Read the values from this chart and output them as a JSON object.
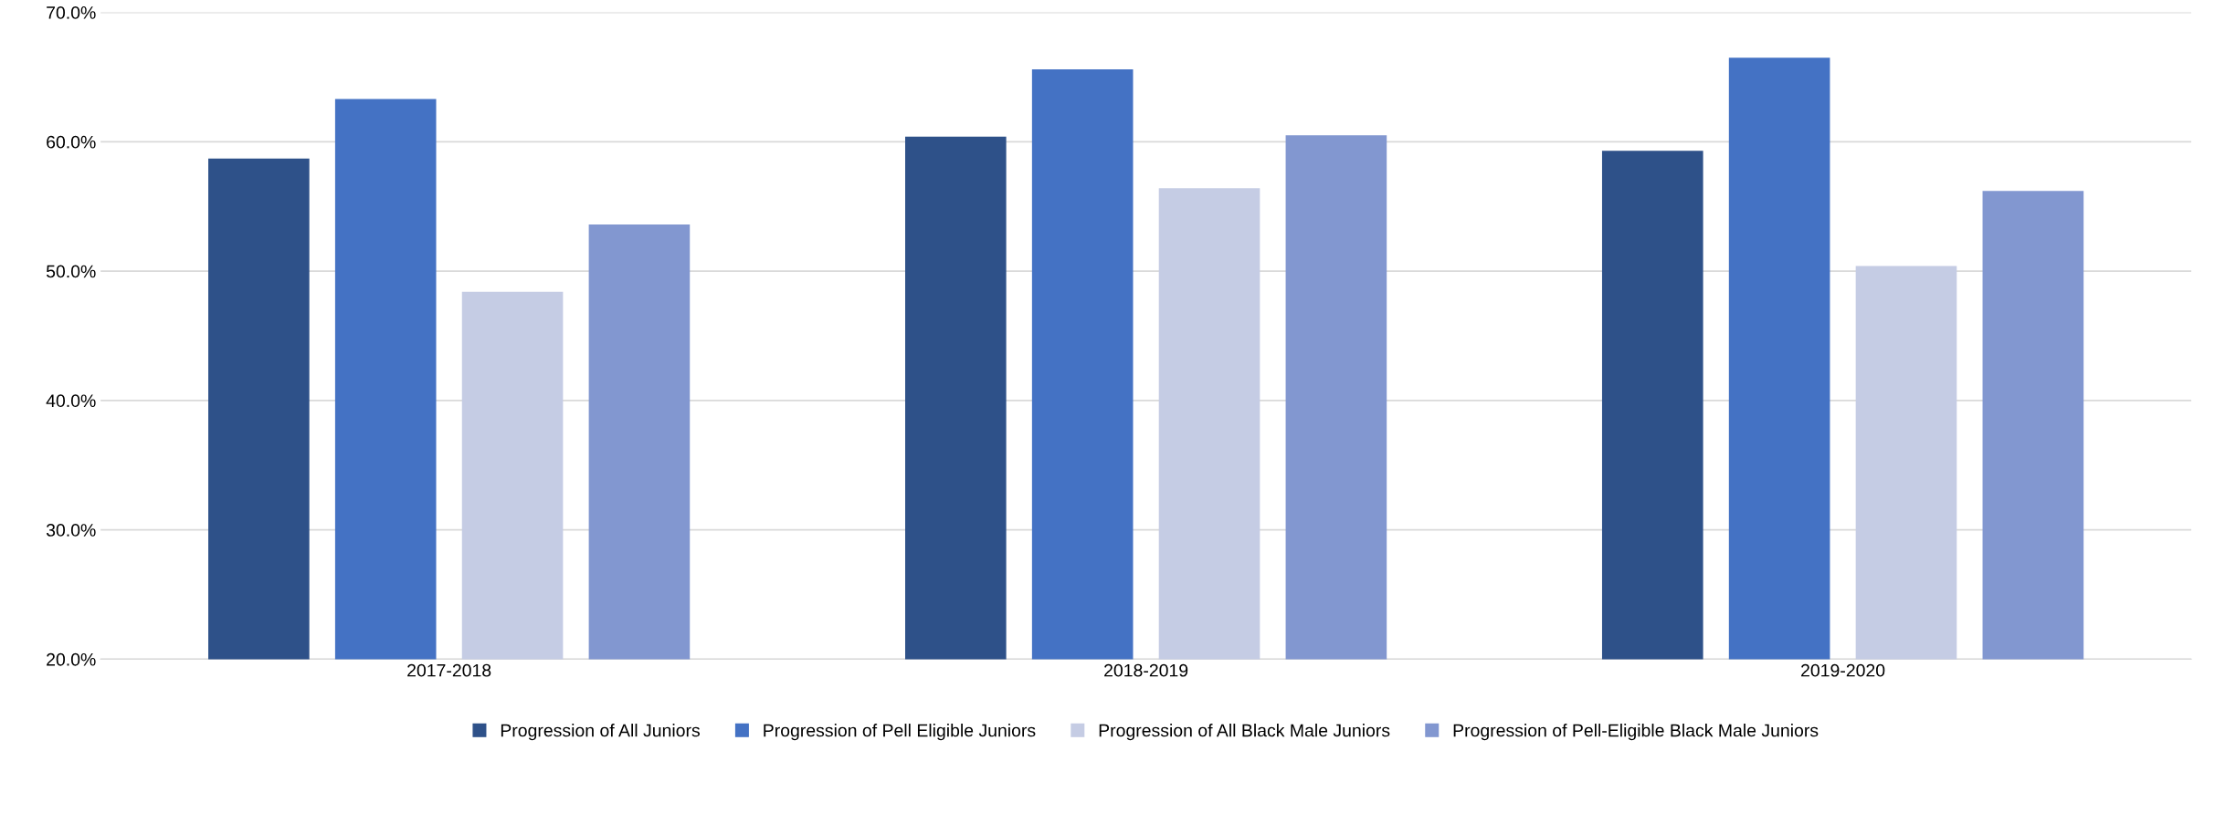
{
  "chart_data": {
    "type": "bar",
    "categories": [
      "2017-2018",
      "2018-2019",
      "2019-2020"
    ],
    "series": [
      {
        "name": "Progression of All Juniors",
        "color": "#2e5189",
        "values": [
          58.7,
          60.4,
          59.3
        ]
      },
      {
        "name": "Progression of Pell Eligible Juniors",
        "color": "#4472c4",
        "values": [
          63.3,
          65.6,
          66.5
        ]
      },
      {
        "name": "Progression of All Black Male Juniors",
        "color": "#c5cce4",
        "values": [
          48.4,
          56.4,
          50.4
        ]
      },
      {
        "name": "Progression of Pell-Eligible Black Male Juniors",
        "color": "#8297d0",
        "values": [
          53.6,
          60.5,
          56.2
        ]
      }
    ],
    "ylim": [
      20,
      70
    ],
    "yticks": [
      {
        "value": 20,
        "label": "20.0%"
      },
      {
        "value": 30,
        "label": "30.0%"
      },
      {
        "value": 40,
        "label": "40.0%"
      },
      {
        "value": 50,
        "label": "50.0%"
      },
      {
        "value": 60,
        "label": "60.0%"
      },
      {
        "value": 70,
        "label": "70.0%"
      }
    ],
    "grid": "y",
    "legend": "bottom"
  }
}
